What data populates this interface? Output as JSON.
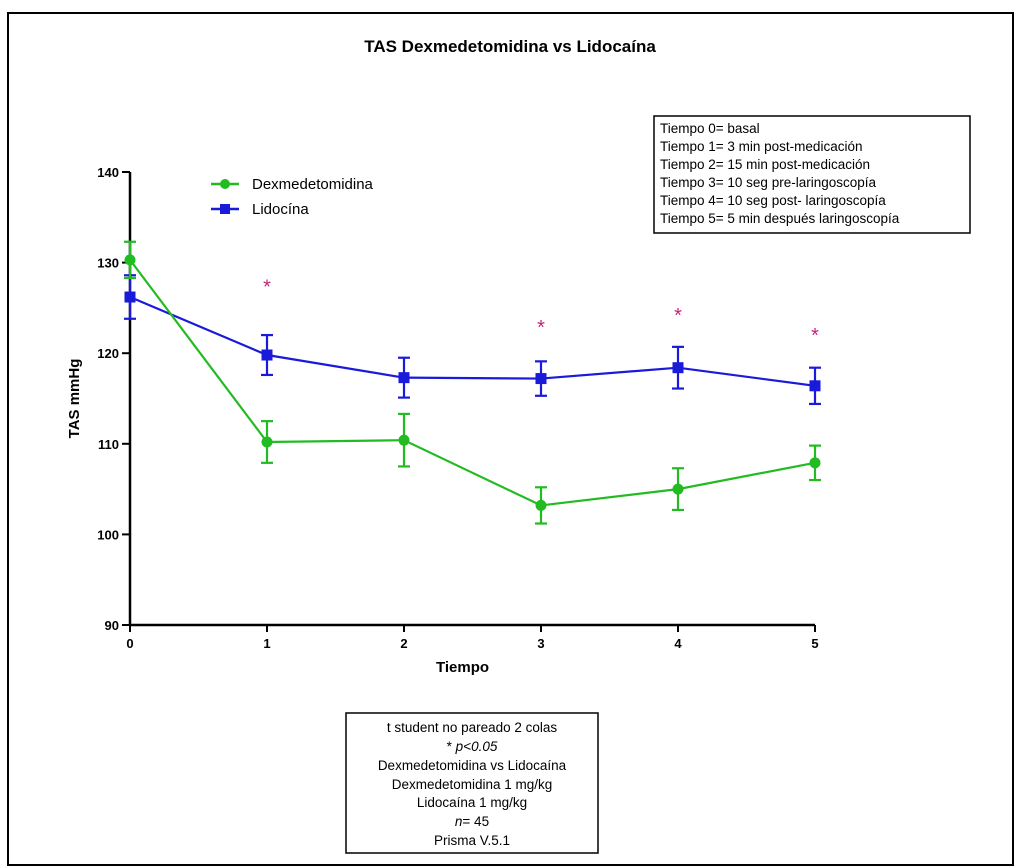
{
  "chart_data": {
    "type": "line",
    "title": "TAS Dexmedetomidina vs Lidocaína",
    "xlabel": "Tiempo",
    "ylabel": "TAS mmHg",
    "x": [
      0,
      1,
      2,
      3,
      4,
      5
    ],
    "xlim": [
      0,
      5
    ],
    "ylim": [
      90,
      140
    ],
    "yticks": [
      90,
      100,
      110,
      120,
      130,
      140
    ],
    "xticks": [
      0,
      1,
      2,
      3,
      4,
      5
    ],
    "grid": false,
    "legend_position": "top-left",
    "series": [
      {
        "name": "Dexmedetomidina",
        "color": "#22bb22",
        "marker": "circle",
        "values": [
          130.3,
          110.2,
          110.4,
          103.2,
          105.0,
          107.9
        ],
        "error": [
          2.0,
          2.3,
          2.9,
          2.0,
          2.3,
          1.9
        ]
      },
      {
        "name": "Lidocína",
        "color": "#1a1adb",
        "marker": "square",
        "values": [
          126.2,
          119.8,
          117.3,
          117.2,
          118.4,
          116.4
        ],
        "error": [
          2.4,
          2.2,
          2.2,
          1.9,
          2.3,
          2.0
        ]
      }
    ],
    "significance": {
      "symbol": "*",
      "color": "#c0267a",
      "points": [
        {
          "x": 1,
          "y": 127.5
        },
        {
          "x": 3,
          "y": 123.0
        },
        {
          "x": 4,
          "y": 124.3
        },
        {
          "x": 5,
          "y": 122.1
        }
      ]
    },
    "time_legend": [
      "Tiempo 0= basal",
      "Tiempo 1= 3 min post-medicación",
      "Tiempo 2= 15 min post-medicación",
      "Tiempo 3= 10 seg pre-laringoscopía",
      "Tiempo 4= 10 seg post- laringoscopía",
      "Tiempo 5= 5 min después laringoscopía"
    ],
    "stats_note": [
      {
        "text": "t student  no pareado 2 colas",
        "italic": ""
      },
      {
        "text": "* ",
        "italic": "p<0.05"
      },
      {
        "text": "Dexmedetomidina vs Lidocaína",
        "italic": ""
      },
      {
        "text": "Dexmedetomidina 1 mg/kg",
        "italic": ""
      },
      {
        "text": "Lidocaína 1 mg/kg",
        "italic": ""
      },
      {
        "text": "= 45",
        "italic": "n",
        "italic_first": true
      },
      {
        "text": "Prisma V.5.1",
        "italic": ""
      }
    ]
  }
}
